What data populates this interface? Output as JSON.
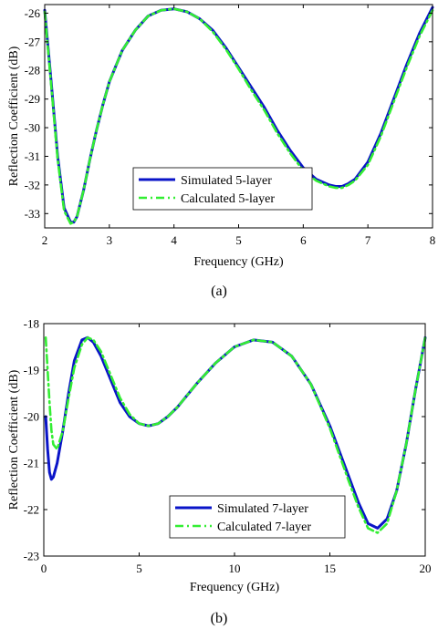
{
  "chart_data": [
    {
      "type": "line",
      "caption": "(a)",
      "xlabel": "Frequency (GHz)",
      "ylabel": "Reflection Coefficient (dB)",
      "xlim": [
        2,
        8
      ],
      "ylim": [
        -33.5,
        -25.7
      ],
      "xticks": [
        2,
        3,
        4,
        5,
        6,
        7,
        8
      ],
      "yticks": [
        -26,
        -27,
        -28,
        -29,
        -30,
        -31,
        -32,
        -33
      ],
      "grid": false,
      "legend": "bottom-center",
      "series": [
        {
          "name": "Simulated 5-layer",
          "color": "#0a14c8",
          "style": "solid",
          "x": [
            2.0,
            2.1,
            2.2,
            2.3,
            2.4,
            2.45,
            2.5,
            2.6,
            2.7,
            2.8,
            2.9,
            3.0,
            3.2,
            3.4,
            3.6,
            3.8,
            4.0,
            4.2,
            4.4,
            4.6,
            4.8,
            5.0,
            5.2,
            5.4,
            5.6,
            5.8,
            6.0,
            6.2,
            6.4,
            6.5,
            6.6,
            6.7,
            6.8,
            7.0,
            7.2,
            7.4,
            7.6,
            7.8,
            8.0
          ],
          "y": [
            -25.9,
            -28.4,
            -31.0,
            -32.8,
            -33.3,
            -33.3,
            -33.1,
            -32.2,
            -31.1,
            -30.1,
            -29.2,
            -28.4,
            -27.3,
            -26.6,
            -26.1,
            -25.9,
            -25.85,
            -25.95,
            -26.2,
            -26.6,
            -27.2,
            -27.9,
            -28.6,
            -29.3,
            -30.1,
            -30.8,
            -31.4,
            -31.8,
            -32.0,
            -32.05,
            -32.05,
            -31.95,
            -31.8,
            -31.2,
            -30.2,
            -29.0,
            -27.8,
            -26.7,
            -25.8
          ]
        },
        {
          "name": "Calculated 5-layer",
          "color": "#33ee33",
          "style": "dashdot",
          "x": [
            2.0,
            2.1,
            2.2,
            2.3,
            2.4,
            2.45,
            2.5,
            2.6,
            2.7,
            2.8,
            2.9,
            3.0,
            3.2,
            3.4,
            3.6,
            3.8,
            4.0,
            4.2,
            4.4,
            4.6,
            4.8,
            5.0,
            5.2,
            5.4,
            5.6,
            5.8,
            6.0,
            6.2,
            6.4,
            6.5,
            6.6,
            6.7,
            6.8,
            7.0,
            7.2,
            7.4,
            7.6,
            7.8,
            8.0
          ],
          "y": [
            -25.95,
            -28.5,
            -31.1,
            -32.9,
            -33.35,
            -33.3,
            -33.1,
            -32.2,
            -31.1,
            -30.1,
            -29.2,
            -28.4,
            -27.3,
            -26.6,
            -26.1,
            -25.9,
            -25.85,
            -25.95,
            -26.2,
            -26.65,
            -27.25,
            -27.95,
            -28.7,
            -29.4,
            -30.2,
            -30.9,
            -31.5,
            -31.85,
            -32.05,
            -32.1,
            -32.1,
            -32.0,
            -31.85,
            -31.3,
            -30.3,
            -29.1,
            -27.9,
            -26.8,
            -25.9
          ]
        }
      ]
    },
    {
      "type": "line",
      "caption": "(b)",
      "xlabel": "Frequency (GHz)",
      "ylabel": "Reflection Coefficient (dB)",
      "xlim": [
        0,
        20
      ],
      "ylim": [
        -23,
        -18
      ],
      "xticks": [
        0,
        5,
        10,
        15,
        20
      ],
      "yticks": [
        -18,
        -19,
        -20,
        -21,
        -22,
        -23
      ],
      "grid": false,
      "legend": "bottom-center",
      "series": [
        {
          "name": "Simulated 7-layer",
          "color": "#0a14c8",
          "style": "solid",
          "x": [
            0.1,
            0.2,
            0.3,
            0.4,
            0.5,
            0.7,
            1.0,
            1.3,
            1.6,
            2.0,
            2.3,
            2.6,
            3.0,
            3.5,
            4.0,
            4.5,
            5.0,
            5.5,
            6.0,
            6.5,
            7.0,
            8.0,
            9.0,
            10.0,
            11.0,
            12.0,
            13.0,
            14.0,
            15.0,
            16.0,
            16.5,
            17.0,
            17.5,
            18.0,
            18.5,
            19.0,
            19.5,
            20.0
          ],
          "y": [
            -20.0,
            -20.7,
            -21.2,
            -21.35,
            -21.3,
            -21.0,
            -20.3,
            -19.5,
            -18.8,
            -18.35,
            -18.3,
            -18.4,
            -18.7,
            -19.2,
            -19.7,
            -20.0,
            -20.15,
            -20.2,
            -20.15,
            -20.0,
            -19.8,
            -19.3,
            -18.85,
            -18.5,
            -18.35,
            -18.4,
            -18.7,
            -19.3,
            -20.2,
            -21.3,
            -21.85,
            -22.3,
            -22.4,
            -22.2,
            -21.6,
            -20.6,
            -19.4,
            -18.3
          ]
        },
        {
          "name": "Calculated 7-layer",
          "color": "#33ee33",
          "style": "dashdot",
          "x": [
            0.1,
            0.2,
            0.3,
            0.4,
            0.5,
            0.7,
            1.0,
            1.3,
            1.6,
            2.0,
            2.3,
            2.6,
            3.0,
            3.5,
            4.0,
            4.5,
            5.0,
            5.5,
            6.0,
            6.5,
            7.0,
            8.0,
            9.0,
            10.0,
            11.0,
            12.0,
            13.0,
            14.0,
            15.0,
            16.0,
            16.5,
            17.0,
            17.5,
            18.0,
            18.5,
            19.0,
            19.5,
            20.0
          ],
          "y": [
            -18.3,
            -19.0,
            -19.7,
            -20.3,
            -20.6,
            -20.7,
            -20.3,
            -19.6,
            -18.95,
            -18.45,
            -18.3,
            -18.35,
            -18.6,
            -19.1,
            -19.6,
            -19.95,
            -20.15,
            -20.2,
            -20.15,
            -20.0,
            -19.8,
            -19.3,
            -18.85,
            -18.5,
            -18.35,
            -18.4,
            -18.7,
            -19.3,
            -20.25,
            -21.4,
            -21.95,
            -22.4,
            -22.5,
            -22.3,
            -21.6,
            -20.6,
            -19.4,
            -18.3
          ]
        }
      ]
    }
  ]
}
